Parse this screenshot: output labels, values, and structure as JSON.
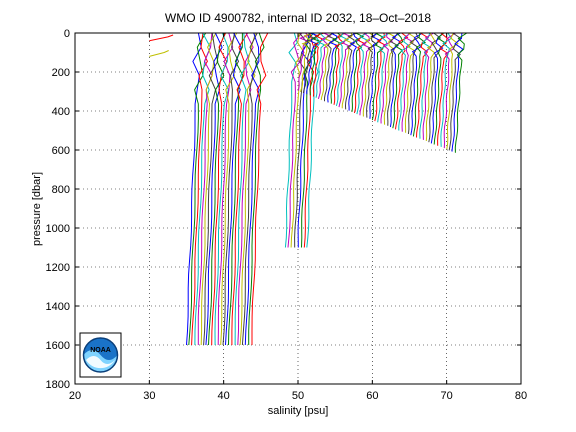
{
  "chart_data": {
    "type": "line",
    "title": "WMO ID 4900782, internal ID 2032, 18–Oct–2018",
    "xlabel": "salinity [psu]",
    "ylabel": "pressure [dbar]",
    "xlim": [
      20,
      80
    ],
    "ylim": [
      0,
      1800
    ],
    "y_reversed": true,
    "grid": true,
    "xticks": [
      "20",
      "30",
      "40",
      "50",
      "60",
      "70",
      "80"
    ],
    "yticks": [
      "0",
      "200",
      "400",
      "600",
      "800",
      "1000",
      "1200",
      "1400",
      "1600",
      "1800"
    ],
    "logo": "NOAA",
    "profile_colors": [
      "#0000ff",
      "#008000",
      "#ff0000",
      "#00bfbf",
      "#bf00bf",
      "#bfbf00",
      "#404040"
    ],
    "profile_groups": [
      {
        "start_salinity_surface": 35.0,
        "step": 0.38,
        "count": 24,
        "surface_offset": 1.6,
        "bottom_dbar": 1600
      },
      {
        "start_salinity_surface": 48.3,
        "step": 0.42,
        "count": 8,
        "surface_offset": 1.2,
        "bottom_dbar": 1100
      },
      {
        "start_salinity_surface": 50.0,
        "step": 0.4,
        "count": 54,
        "surface_offset": 1.0,
        "bottom_dbar": 620
      }
    ],
    "stray_profiles": [
      {
        "points": [
          [
            30.0,
            40
          ],
          [
            32.5,
            20
          ],
          [
            33.2,
            10
          ]
        ],
        "color": "#ff0000"
      },
      {
        "points": [
          [
            30.0,
            120
          ],
          [
            32.0,
            100
          ],
          [
            32.6,
            90
          ]
        ],
        "color": "#bfbf00"
      }
    ]
  }
}
